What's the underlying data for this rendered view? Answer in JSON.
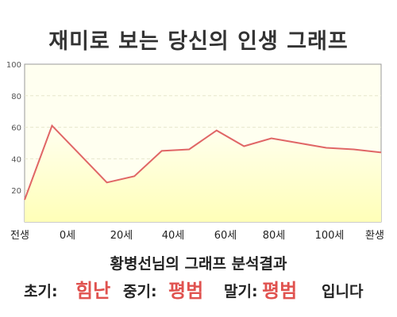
{
  "header": {
    "title": "재미로 보는 당신의 인생 그래프"
  },
  "chart_data": {
    "type": "area",
    "x_labels": [
      "전생",
      "0세",
      "20세",
      "40세",
      "60세",
      "80세",
      "100세",
      "환생"
    ],
    "x": [
      "전생",
      "0세",
      "",
      "20세",
      "",
      "40세",
      "",
      "60세",
      "",
      "80세",
      "",
      "100세",
      "",
      "환생"
    ],
    "values": [
      14,
      61,
      43,
      25,
      29,
      45,
      46,
      58,
      48,
      53,
      50,
      47,
      46,
      44
    ],
    "ylim": [
      0,
      100
    ],
    "y_ticks": [
      20,
      40,
      60,
      80,
      100
    ],
    "grid": true,
    "line_color": "#e06666",
    "fill_color": "#ffffcc"
  },
  "summary": {
    "title": "황병선님의 그래프 분석결과",
    "early_label": "초기:",
    "early_value": "힘난",
    "mid_label": "중기:",
    "mid_value": "평범",
    "late_label": "말기:",
    "late_value": "평범",
    "ending": "입니다"
  },
  "colors": {
    "accent": "#e0524f"
  }
}
